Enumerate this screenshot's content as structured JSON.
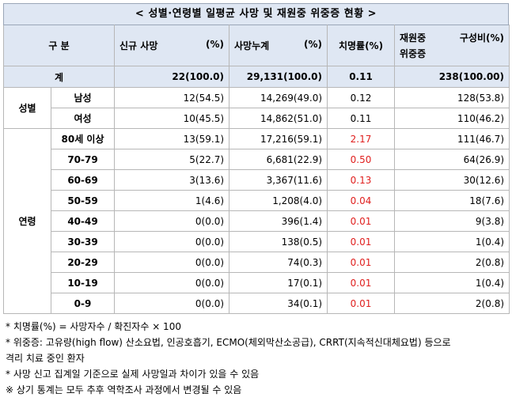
{
  "title": "< 성별·연령별 일평균 사망 및 재원중 위중증 현황 >",
  "headers": {
    "group": "구 분",
    "new_deaths": "신규 사망",
    "new_deaths_unit": "(%)",
    "cum_deaths": "사망누계",
    "cum_deaths_unit": "(%)",
    "fatality": "치명률(%)",
    "severe_top": "재원중",
    "severe_bottom": "위중증",
    "severe_ratio": "구성비(%)"
  },
  "total": {
    "label": "계",
    "new": "22(100.0)",
    "cum": "29,131(100.0)",
    "fatality": "0.11",
    "severe": "238(100.00)"
  },
  "gender": {
    "label": "성별",
    "rows": [
      {
        "label": "남성",
        "new": "12(54.5)",
        "cum": "14,269(49.0)",
        "fatality": "0.12",
        "severe": "128(53.8)"
      },
      {
        "label": "여성",
        "new": "10(45.5)",
        "cum": "14,862(51.0)",
        "fatality": "0.11",
        "severe": "110(46.2)"
      }
    ]
  },
  "age": {
    "label": "연령",
    "rows": [
      {
        "label": "80세 이상",
        "new": "13(59.1)",
        "cum": "17,216(59.1)",
        "fatality": "2.17",
        "severe": "111(46.7)"
      },
      {
        "label": "70-79",
        "new": "5(22.7)",
        "cum": "6,681(22.9)",
        "fatality": "0.50",
        "severe": "64(26.9)"
      },
      {
        "label": "60-69",
        "new": "3(13.6)",
        "cum": "3,367(11.6)",
        "fatality": "0.13",
        "severe": "30(12.6)"
      },
      {
        "label": "50-59",
        "new": "1(4.6)",
        "cum": "1,208(4.0)",
        "fatality": "0.04",
        "severe": "18(7.6)"
      },
      {
        "label": "40-49",
        "new": "0(0.0)",
        "cum": "396(1.4)",
        "fatality": "0.01",
        "severe": "9(3.8)"
      },
      {
        "label": "30-39",
        "new": "0(0.0)",
        "cum": "138(0.5)",
        "fatality": "0.01",
        "severe": "1(0.4)"
      },
      {
        "label": "20-29",
        "new": "0(0.0)",
        "cum": "74(0.3)",
        "fatality": "0.01",
        "severe": "2(0.8)"
      },
      {
        "label": "10-19",
        "new": "0(0.0)",
        "cum": "17(0.1)",
        "fatality": "0.01",
        "severe": "1(0.4)"
      },
      {
        "label": "0-9",
        "new": "0(0.0)",
        "cum": "34(0.1)",
        "fatality": "0.01",
        "severe": "2(0.8)"
      }
    ]
  },
  "notes": [
    "* 치명률(%) = 사망자수 / 확진자수 × 100",
    "* 위중증: 고유량(high flow) 산소요법, 인공호흡기, ECMO(체외막산소공급), CRRT(지속적신대체요법) 등으로",
    "격리 치료 중인 환자",
    "* 사망 신고 집계일 기준으로 실제 사망일과 차이가 있을 수 있음",
    "※ 상기 통계는 모두 추후 역학조사 과정에서 변경될 수 있음"
  ],
  "colors": {
    "header_bg": "#dfe7f3",
    "fatality_age": "#e0201f"
  }
}
